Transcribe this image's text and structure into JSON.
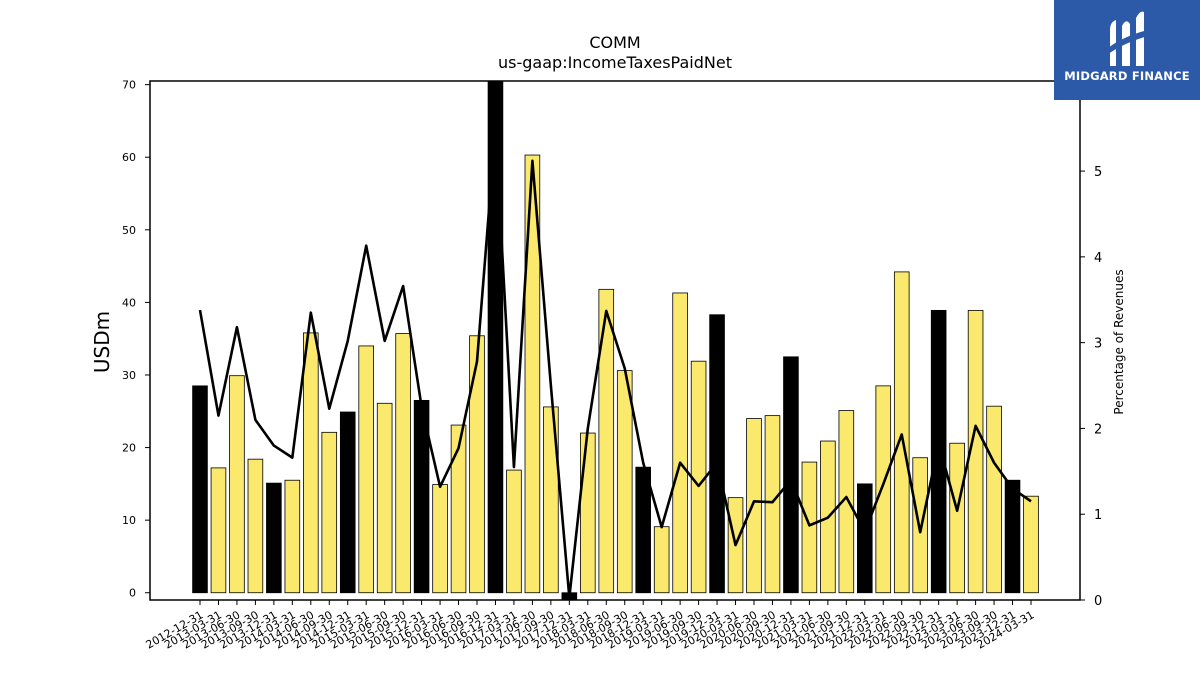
{
  "brand": {
    "name": "MIDGARD FINANCE",
    "bg": "#2d5aa8"
  },
  "chart_data": {
    "type": "bar",
    "title": "COMM",
    "subtitle": "us-gaap:IncomeTaxesPaidNet",
    "ylabel": "USDm",
    "ylabel_right": "Percentage of Revenues",
    "ylim": [
      -1,
      70.5
    ],
    "y2lim": [
      0,
      6.05
    ],
    "yticks": [
      0,
      10,
      20,
      30,
      40,
      50,
      60,
      70
    ],
    "y2ticks": [
      0,
      1,
      2,
      3,
      4,
      5
    ],
    "colors": {
      "q4": "#000000",
      "other": "#fbe96e",
      "line": "#000000"
    },
    "categories": [
      "2012-12-31",
      "2013-03-31",
      "2013-06-30",
      "2013-09-30",
      "2013-12-31",
      "2014-03-31",
      "2014-06-30",
      "2014-09-30",
      "2014-12-31",
      "2015-03-31",
      "2015-06-30",
      "2015-09-30",
      "2015-12-31",
      "2016-03-31",
      "2016-06-30",
      "2016-09-30",
      "2016-12-31",
      "2017-03-31",
      "2017-06-30",
      "2017-09-30",
      "2017-12-31",
      "2018-03-31",
      "2018-06-30",
      "2018-09-30",
      "2018-12-31",
      "2019-03-31",
      "2019-06-30",
      "2019-09-30",
      "2019-12-31",
      "2020-03-31",
      "2020-06-30",
      "2020-09-30",
      "2020-12-31",
      "2021-03-31",
      "2021-06-30",
      "2021-09-30",
      "2021-12-31",
      "2022-03-31",
      "2022-06-30",
      "2022-09-30",
      "2022-12-31",
      "2023-03-31",
      "2023-06-30",
      "2023-09-30",
      "2023-12-31",
      "2024-03-31"
    ],
    "series": [
      {
        "values": [
          28.5,
          17.2,
          29.9,
          18.4,
          15.1,
          15.5,
          35.8,
          22.1,
          24.9,
          34.0,
          26.1,
          35.7,
          26.5,
          14.9,
          23.1,
          35.4,
          71.0,
          16.9,
          60.3,
          25.6,
          -1.0,
          22.0,
          41.8,
          30.6,
          17.3,
          9.1,
          41.3,
          31.9,
          38.3,
          13.1,
          24.0,
          24.4,
          32.5,
          18.0,
          20.9,
          25.1,
          15.0,
          28.5,
          44.2,
          18.6,
          38.9,
          20.6,
          38.9,
          25.7,
          15.5,
          13.3
        ]
      },
      {
        "type": "line",
        "values": [
          3.38,
          2.15,
          3.18,
          2.1,
          1.8,
          1.66,
          3.35,
          2.23,
          3.02,
          4.13,
          3.02,
          3.66,
          2.25,
          1.32,
          1.77,
          2.78,
          5.5,
          1.55,
          5.12,
          2.5,
          0.03,
          2.0,
          3.37,
          2.7,
          1.6,
          0.85,
          1.6,
          1.33,
          1.6,
          0.64,
          1.15,
          1.14,
          1.4,
          0.87,
          0.96,
          1.2,
          0.8,
          1.35,
          1.93,
          0.79,
          1.82,
          1.04,
          2.03,
          1.6,
          1.3,
          1.15
        ]
      }
    ]
  }
}
